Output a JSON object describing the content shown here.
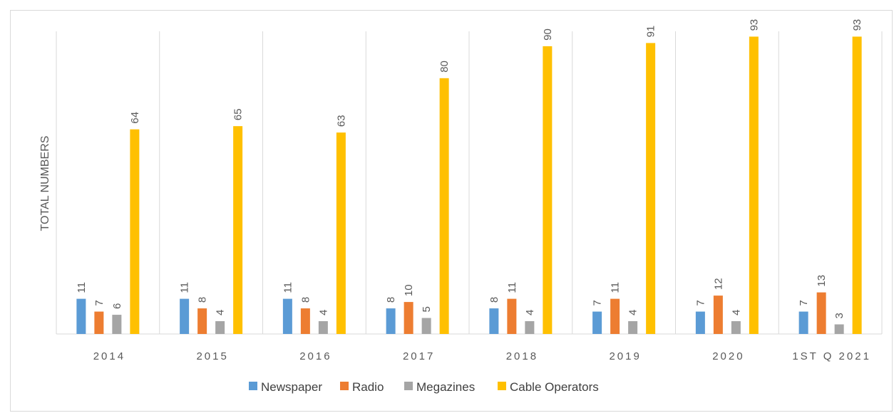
{
  "chart_data": {
    "type": "bar",
    "title": "",
    "xlabel": "",
    "ylabel": "TOTAL NUMBERS",
    "ylim": [
      0,
      100
    ],
    "grid": "vertical category separators",
    "legend_position": "bottom",
    "categories": [
      "2014",
      "2015",
      "2016",
      "2017",
      "2018",
      "2019",
      "2020",
      "1ST Q 2021"
    ],
    "series": [
      {
        "name": "Newspaper",
        "color": "#5b9bd5",
        "values": [
          11,
          11,
          11,
          8,
          8,
          7,
          7,
          7
        ]
      },
      {
        "name": "Radio",
        "color": "#ed7d31",
        "values": [
          7,
          8,
          8,
          10,
          11,
          11,
          12,
          13
        ]
      },
      {
        "name": "Megazines",
        "color": "#a5a5a5",
        "values": [
          6,
          4,
          4,
          5,
          4,
          4,
          4,
          3
        ]
      },
      {
        "name": "Cable Operators",
        "color": "#ffc000",
        "values": [
          64,
          65,
          63,
          80,
          90,
          91,
          93,
          93
        ]
      }
    ]
  }
}
